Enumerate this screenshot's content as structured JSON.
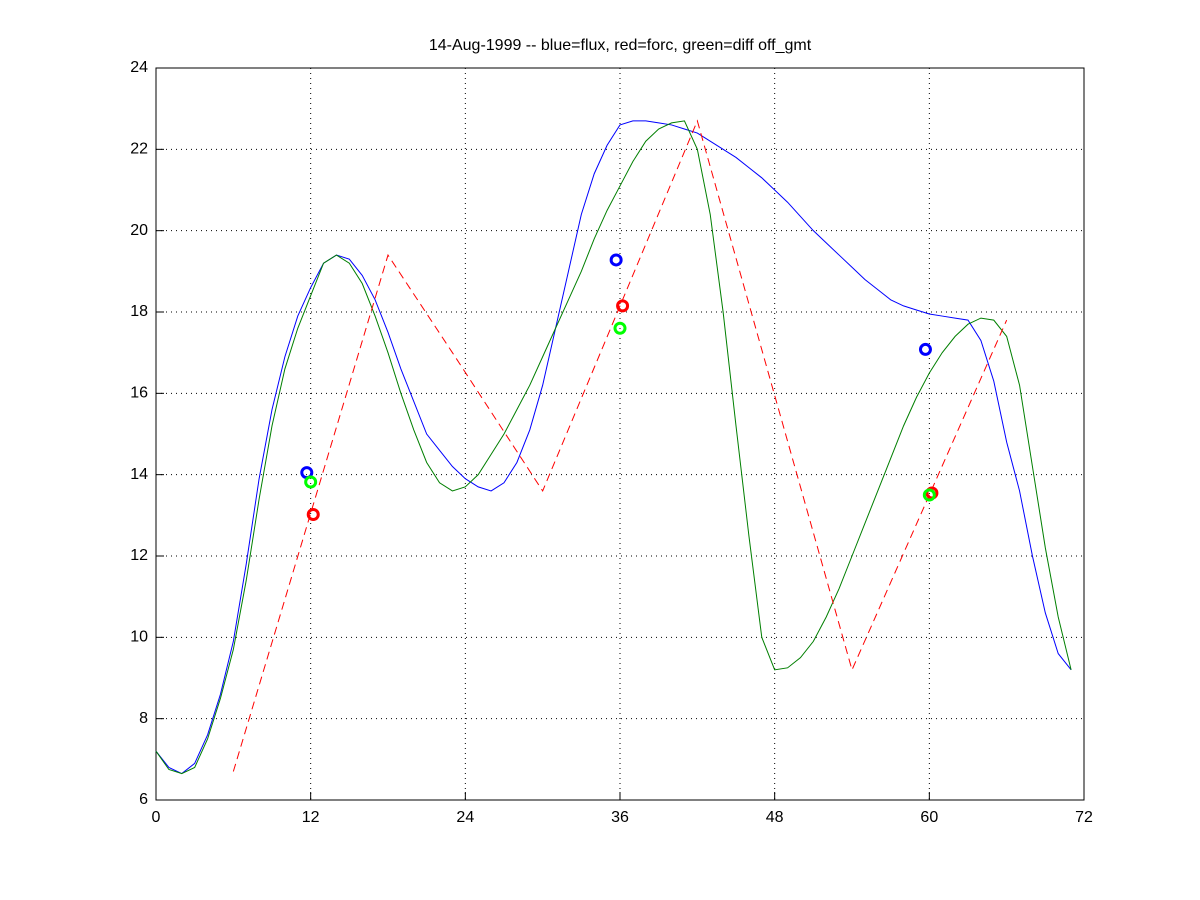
{
  "chart_data": {
    "type": "line",
    "title": "14-Aug-1999 -- blue=flux, red=forc, green=diff off_gmt",
    "xlim": [
      0,
      72
    ],
    "xticks": [
      0,
      12,
      24,
      36,
      48,
      60,
      72
    ],
    "ylim": [
      6,
      24
    ],
    "yticks": [
      6,
      8,
      10,
      12,
      14,
      16,
      18,
      20,
      22,
      24
    ],
    "grid": true,
    "series": [
      {
        "color": "#0000ff",
        "style": "solid",
        "x": [
          0,
          1,
          2,
          3,
          4,
          5,
          6,
          7,
          8,
          9,
          10,
          11,
          12,
          13,
          14,
          15,
          16,
          17,
          18,
          19,
          20,
          21,
          22,
          23,
          24,
          25,
          26,
          27,
          28,
          29,
          30,
          31,
          32,
          33,
          34,
          35,
          36,
          37,
          38,
          39,
          40,
          41,
          42,
          43,
          44,
          45,
          46,
          47,
          48,
          49,
          50,
          51,
          52,
          53,
          54,
          55,
          56,
          57,
          58,
          59,
          60,
          61,
          62,
          63,
          64,
          65,
          66,
          67,
          68,
          69,
          70,
          71
        ],
        "values": [
          7.2,
          6.8,
          6.65,
          6.9,
          7.6,
          8.6,
          9.9,
          11.8,
          13.9,
          15.6,
          16.9,
          17.9,
          18.6,
          19.2,
          19.4,
          19.3,
          18.9,
          18.3,
          17.5,
          16.6,
          15.8,
          15.0,
          14.6,
          14.2,
          13.9,
          13.7,
          13.6,
          13.8,
          14.3,
          15.1,
          16.2,
          17.6,
          19.0,
          20.4,
          21.4,
          22.1,
          22.6,
          22.7,
          22.7,
          22.65,
          22.6,
          22.5,
          22.4,
          22.2,
          22.0,
          21.8,
          21.55,
          21.3,
          21.0,
          20.7,
          20.35,
          20.0,
          19.7,
          19.4,
          19.1,
          18.8,
          18.55,
          18.3,
          18.15,
          18.05,
          17.95,
          17.9,
          17.85,
          17.8,
          17.3,
          16.3,
          14.8,
          13.6,
          12.0,
          10.6,
          9.6,
          9.2
        ]
      },
      {
        "color": "#007f00",
        "style": "solid",
        "x": [
          0,
          1,
          2,
          3,
          4,
          5,
          6,
          7,
          8,
          9,
          10,
          11,
          12,
          13,
          14,
          15,
          16,
          17,
          18,
          19,
          20,
          21,
          22,
          23,
          24,
          25,
          26,
          27,
          28,
          29,
          30,
          31,
          32,
          33,
          34,
          35,
          36,
          37,
          38,
          39,
          40,
          41,
          42,
          43,
          44,
          45,
          46,
          47,
          48,
          49,
          50,
          51,
          52,
          53,
          54,
          55,
          56,
          57,
          58,
          59,
          60,
          61,
          62,
          63,
          64,
          65,
          66,
          67,
          68,
          69,
          70,
          71
        ],
        "values": [
          7.2,
          6.75,
          6.65,
          6.8,
          7.5,
          8.5,
          9.7,
          11.4,
          13.4,
          15.2,
          16.6,
          17.6,
          18.4,
          19.2,
          19.4,
          19.2,
          18.7,
          17.9,
          17.0,
          16.0,
          15.1,
          14.3,
          13.8,
          13.6,
          13.7,
          14.0,
          14.5,
          15.0,
          15.6,
          16.2,
          16.9,
          17.6,
          18.3,
          19.0,
          19.8,
          20.5,
          21.1,
          21.7,
          22.2,
          22.5,
          22.65,
          22.7,
          22.0,
          20.4,
          18.0,
          15.2,
          12.5,
          10.0,
          9.2,
          9.25,
          9.5,
          9.9,
          10.5,
          11.2,
          12.0,
          12.8,
          13.6,
          14.4,
          15.2,
          15.9,
          16.5,
          17.0,
          17.4,
          17.7,
          17.85,
          17.8,
          17.4,
          16.2,
          14.2,
          12.2,
          10.5,
          9.2
        ]
      },
      {
        "color": "#ff0000",
        "style": "dashed",
        "x": [
          6,
          18,
          23,
          30,
          42,
          54,
          66
        ],
        "values": [
          6.7,
          19.4,
          17.0,
          13.6,
          22.7,
          9.2,
          17.8
        ]
      },
      {
        "color": "#0000ff",
        "style": "markers",
        "x": [
          11.7,
          35.7,
          59.7
        ],
        "values": [
          14.05,
          19.28,
          17.08
        ]
      },
      {
        "color": "#ff0000",
        "style": "markers",
        "x": [
          12.2,
          36.2,
          60.2
        ],
        "values": [
          13.02,
          18.15,
          13.55
        ]
      },
      {
        "color": "#00ff00",
        "style": "markers",
        "x": [
          12.0,
          36.0,
          60.0
        ],
        "values": [
          13.82,
          17.6,
          13.5
        ]
      }
    ]
  }
}
